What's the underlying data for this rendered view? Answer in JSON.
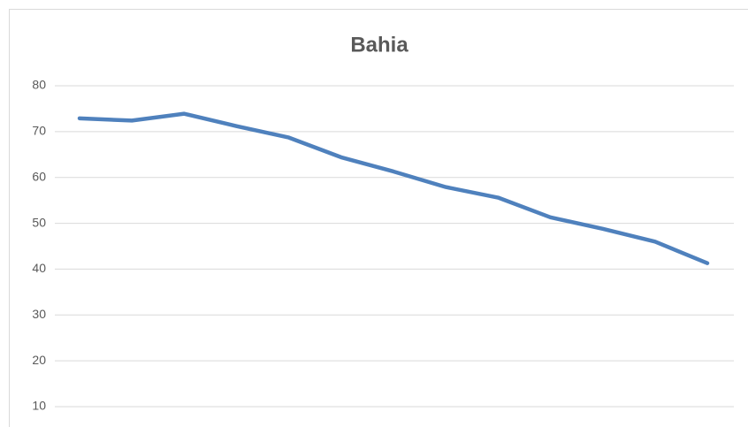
{
  "chart_data": {
    "type": "line",
    "title": "Bahia",
    "categories": [
      null,
      null,
      null,
      null,
      null,
      null,
      null,
      null,
      null,
      null,
      null,
      null,
      null
    ],
    "series": [
      {
        "name": null,
        "color": "#4f81bd",
        "values": [
          72.9,
          72.4,
          73.9,
          71.2,
          68.7,
          64.4,
          61.3,
          57.9,
          55.6,
          51.3,
          48.8,
          46.0,
          41.3
        ]
      }
    ],
    "ylim": [
      10,
      80
    ],
    "yticks": [
      10,
      20,
      30,
      40,
      50,
      60,
      70,
      80
    ],
    "grid": true
  }
}
